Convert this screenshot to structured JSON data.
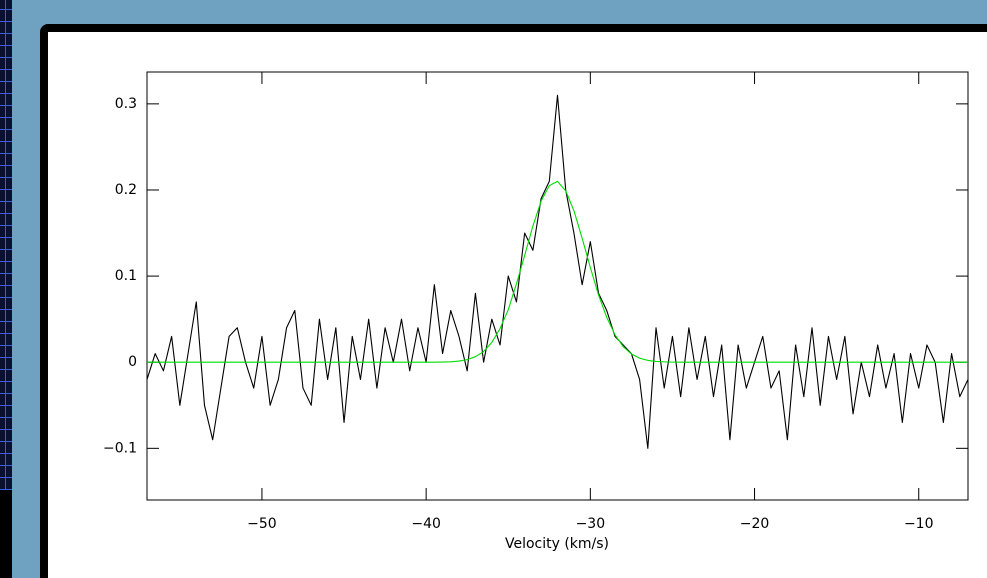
{
  "chart_data": {
    "type": "line",
    "xlabel": "Velocity (km/s)",
    "x": [
      -57,
      -56.5,
      -56,
      -55.5,
      -55,
      -54.5,
      -54,
      -53.5,
      -53,
      -52.5,
      -52,
      -51.5,
      -51,
      -50.5,
      -50,
      -49.5,
      -49,
      -48.5,
      -48,
      -47.5,
      -47,
      -46.5,
      -46,
      -45.5,
      -45,
      -44.5,
      -44,
      -43.5,
      -43,
      -42.5,
      -42,
      -41.5,
      -41,
      -40.5,
      -40,
      -39.5,
      -39,
      -38.5,
      -38,
      -37.5,
      -37,
      -36.5,
      -36,
      -35.5,
      -35,
      -34.5,
      -34,
      -33.5,
      -33,
      -32.5,
      -32,
      -31.5,
      -31,
      -30.5,
      -30,
      -29.5,
      -29,
      -28.5,
      -28,
      -27.5,
      -27,
      -26.5,
      -26,
      -25.5,
      -25,
      -24.5,
      -24,
      -23.5,
      -23,
      -22.5,
      -22,
      -21.5,
      -21,
      -20.5,
      -20,
      -19.5,
      -19,
      -18.5,
      -18,
      -17.5,
      -17,
      -16.5,
      -16,
      -15.5,
      -15,
      -14.5,
      -14,
      -13.5,
      -13,
      -12.5,
      -12,
      -11.5,
      -11,
      -10.5,
      -10,
      -9.5,
      -9,
      -8.5,
      -8,
      -7.5,
      -7
    ],
    "series": [
      {
        "color": "#000000",
        "values": [
          -0.02,
          0.01,
          -0.01,
          0.03,
          -0.05,
          0.01,
          0.07,
          -0.05,
          -0.09,
          -0.03,
          0.03,
          0.04,
          0,
          -0.03,
          0.03,
          -0.05,
          -0.02,
          0.04,
          0.06,
          -0.03,
          -0.05,
          0.05,
          -0.02,
          0.04,
          -0.07,
          0.03,
          -0.02,
          0.05,
          -0.03,
          0.04,
          0,
          0.05,
          -0.01,
          0.04,
          0,
          0.09,
          0.01,
          0.06,
          0.03,
          -0.01,
          0.08,
          0,
          0.05,
          0.02,
          0.1,
          0.07,
          0.15,
          0.13,
          0.19,
          0.21,
          0.31,
          0.2,
          0.15,
          0.09,
          0.14,
          0.08,
          0.06,
          0.03,
          0.02,
          0.01,
          -0.02,
          -0.1,
          0.04,
          -0.03,
          0.03,
          -0.04,
          0.04,
          -0.02,
          0.03,
          -0.04,
          0.02,
          -0.09,
          0.02,
          -0.03,
          0,
          0.03,
          -0.03,
          -0.01,
          -0.09,
          0.02,
          -0.04,
          0.04,
          -0.05,
          0.03,
          -0.02,
          0.03,
          -0.06,
          0,
          -0.04,
          0.02,
          -0.03,
          0.01,
          -0.07,
          0.01,
          -0.03,
          0.02,
          0,
          -0.07,
          0.01,
          -0.04,
          -0.02
        ]
      },
      {
        "color": "#00dd00",
        "values": [
          0,
          0,
          0,
          0,
          0,
          0,
          0,
          0,
          0,
          0,
          0,
          0,
          0,
          0,
          0,
          0,
          0,
          0,
          0,
          0,
          0,
          0,
          0,
          0,
          0,
          0,
          0,
          0,
          0,
          0,
          0,
          0,
          0,
          0,
          0,
          0,
          0.0002,
          0.0005,
          0.0013,
          0.003,
          0.0064,
          0.0124,
          0.023,
          0.039,
          0.061,
          0.091,
          0.124,
          0.158,
          0.187,
          0.205,
          0.21,
          0.199,
          0.176,
          0.144,
          0.11,
          0.078,
          0.052,
          0.032,
          0.018,
          0.0096,
          0.0047,
          0.0021,
          0.0009,
          0.0004,
          0.0001,
          0,
          0,
          0,
          0,
          0,
          0,
          0,
          0,
          0,
          0,
          0,
          0,
          0,
          0,
          0,
          0,
          0,
          0,
          0,
          0,
          0,
          0,
          0,
          0,
          0,
          0,
          0,
          0,
          0,
          0,
          0,
          0,
          0,
          0,
          0,
          0
        ]
      }
    ],
    "xlim": [
      -57,
      -7
    ],
    "ylim": [
      -0.16,
      0.337
    ],
    "xticks": [
      {
        "value": -50,
        "label": "−50"
      },
      {
        "value": -40,
        "label": "−40"
      },
      {
        "value": -30,
        "label": "−30"
      },
      {
        "value": -20,
        "label": "−20"
      },
      {
        "value": -10,
        "label": "−10"
      }
    ],
    "yticks": [
      {
        "value": -0.1,
        "label": "−0.1"
      },
      0,
      0.1,
      0.2,
      0.3
    ]
  }
}
